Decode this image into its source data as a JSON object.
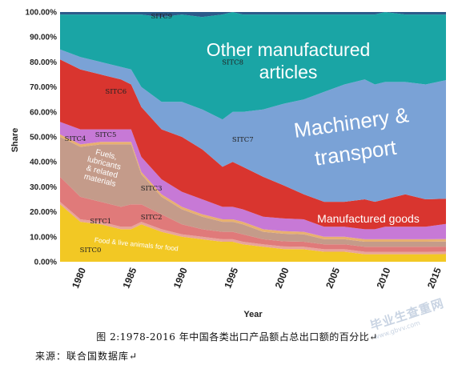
{
  "chart_data": {
    "type": "area",
    "stacked": true,
    "normalized": true,
    "xlabel": "Year",
    "ylabel": "Share",
    "xlim": [
      1978,
      2016
    ],
    "ylim": [
      0,
      100
    ],
    "y_ticks": [
      "0.00%",
      "10.00%",
      "20.00%",
      "30.00%",
      "40.00%",
      "50.00%",
      "60.00%",
      "70.00%",
      "80.00%",
      "90.00%",
      "100.00%"
    ],
    "x_ticks": [
      "1980",
      "1985",
      "1990",
      "1995",
      "2000",
      "2005",
      "2010",
      "2015"
    ],
    "x": [
      1978,
      1980,
      1982,
      1984,
      1985,
      1986,
      1988,
      1990,
      1992,
      1994,
      1995,
      1996,
      1998,
      2000,
      2002,
      2004,
      2006,
      2008,
      2009,
      2010,
      2012,
      2014,
      2016
    ],
    "series": [
      {
        "code": "SITC0",
        "label": "Food & live animals for food",
        "color": "#f2c824",
        "values": [
          23,
          16,
          15,
          13,
          13,
          15,
          12,
          10,
          9,
          8,
          8,
          7,
          6,
          5,
          5,
          4,
          4,
          3,
          3,
          3,
          3,
          3,
          3
        ]
      },
      {
        "code": "SITC1",
        "label": "",
        "color": "#e8a49a",
        "values": [
          1,
          1,
          1,
          1,
          1,
          1,
          1,
          1,
          1,
          1,
          1,
          1,
          1,
          1,
          1,
          1,
          1,
          1,
          1,
          1,
          1,
          1,
          1
        ]
      },
      {
        "code": "SITC2",
        "label": "",
        "color": "#e07a7a",
        "values": [
          10,
          9,
          8,
          8,
          9,
          7,
          6,
          4,
          3,
          3,
          3,
          3,
          2,
          2,
          2,
          2,
          2,
          2,
          2,
          2,
          2,
          2,
          2
        ]
      },
      {
        "code": "SITC3",
        "label": "Fuels, lubricants & related materials",
        "color": "#c49b8a",
        "values": [
          16,
          20,
          23,
          25,
          24,
          12,
          7,
          6,
          5,
          4,
          4,
          4,
          3,
          3,
          3,
          2,
          2,
          2,
          2,
          2,
          2,
          2,
          2
        ]
      },
      {
        "code": "SITC4",
        "label": "",
        "color": "#e8b070",
        "values": [
          1,
          1,
          1,
          1,
          1,
          1,
          1,
          1,
          1,
          1,
          1,
          1,
          1,
          1,
          1,
          1,
          1,
          1,
          1,
          1,
          1,
          1,
          1
        ]
      },
      {
        "code": "SITC5",
        "label": "",
        "color": "#c779d6",
        "values": [
          5,
          6,
          5,
          5,
          5,
          6,
          6,
          6,
          6,
          5,
          5,
          5,
          5,
          5,
          5,
          4,
          4,
          4,
          4,
          5,
          5,
          5,
          6
        ]
      },
      {
        "code": "SITC6",
        "label": "Manufactured goods",
        "color": "#d9352f",
        "values": [
          25,
          24,
          22,
          20,
          18,
          20,
          20,
          22,
          20,
          16,
          18,
          17,
          16,
          13,
          10,
          10,
          10,
          12,
          11,
          11,
          13,
          11,
          10
        ]
      },
      {
        "code": "SITC7",
        "label": "Machinery & transport",
        "color": "#7aa2d6",
        "values": [
          4,
          5,
          5,
          5,
          6,
          8,
          11,
          14,
          16,
          19,
          20,
          22,
          27,
          32,
          38,
          44,
          47,
          48,
          47,
          47,
          45,
          46,
          47
        ]
      },
      {
        "code": "SITC8",
        "label": "Other manufactured articles",
        "color": "#1aa5a5",
        "values": [
          14,
          17,
          19,
          21,
          22,
          29,
          34,
          35,
          37,
          42,
          40,
          39,
          38,
          35,
          34,
          31,
          28,
          26,
          28,
          28,
          27,
          28,
          26
        ]
      },
      {
        "code": "SITC9",
        "label": "",
        "color": "#2c5a8a",
        "values": [
          1,
          1,
          1,
          1,
          1,
          1,
          2,
          1,
          2,
          1,
          0,
          1,
          1,
          1,
          1,
          1,
          1,
          1,
          1,
          0,
          1,
          1,
          1
        ]
      }
    ]
  },
  "caption": "图 2:1978-2016 年中国各类出口产品额占总出口额的百分比↵",
  "source": "来源：联合国数据库↵",
  "watermark": {
    "main": "毕业生查重网",
    "sub": "www.gbvv.com"
  }
}
